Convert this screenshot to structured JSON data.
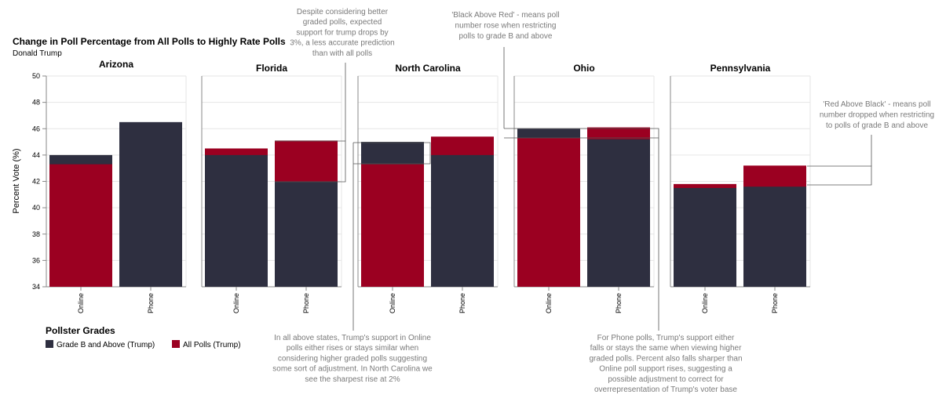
{
  "chart_data": {
    "type": "bar",
    "title": "Change in Poll Percentage from All Polls to Highly Rate Polls",
    "subtitle": "Donald Trump",
    "ylabel": "Percent Vote (%)",
    "ylim": [
      34,
      50
    ],
    "yticks": [
      34,
      36,
      38,
      40,
      42,
      44,
      46,
      48,
      50
    ],
    "categories": [
      "Online",
      "Phone"
    ],
    "grid": true,
    "legend": {
      "title": "Pollster Grades",
      "placement": "bottom-left",
      "entries": [
        {
          "name": "Grade B and Above (Trump)",
          "color": "#2e2f40"
        },
        {
          "name": "All Polls (Trump)",
          "color": "#9b0021"
        }
      ]
    },
    "facets": [
      {
        "name": "Arizona",
        "grade_b": [
          44.0,
          46.5
        ],
        "all_polls": [
          43.3,
          null
        ]
      },
      {
        "name": "Florida",
        "grade_b": [
          44.0,
          42.0
        ],
        "all_polls": [
          44.5,
          45.1
        ]
      },
      {
        "name": "North Carolina",
        "grade_b": [
          45.0,
          44.0
        ],
        "all_polls": [
          43.3,
          45.4
        ]
      },
      {
        "name": "Ohio",
        "grade_b": [
          46.0,
          45.2
        ],
        "all_polls": [
          45.3,
          46.1
        ]
      },
      {
        "name": "Pennsylvania",
        "grade_b": [
          41.5,
          41.6
        ],
        "all_polls": [
          41.8,
          43.2
        ]
      }
    ],
    "annotations": [
      {
        "id": "florida",
        "lines": [
          "Despite considering better",
          "graded polls, expected",
          "support for trump drops by",
          "3%, a less accurate prediction",
          "than with all polls"
        ]
      },
      {
        "id": "black-above-red",
        "lines": [
          "'Black Above Red' - means poll",
          "number rose when restricting",
          "polls to grade B and above"
        ]
      },
      {
        "id": "red-above-black",
        "lines": [
          "'Red Above Black' - means poll",
          "number dropped when restricting",
          "to polls of grade B and above"
        ]
      },
      {
        "id": "online",
        "lines": [
          "In all above states, Trump's support in Online",
          "polls either rises or stays similar when",
          "considering higher graded polls suggesting",
          "some sort of adjustment. In North Carolina we",
          "see the sharpest rise at 2%"
        ]
      },
      {
        "id": "phone",
        "lines": [
          "For Phone polls, Trump's support either",
          "falls or stays the same when viewing higher",
          "graded polls. Percent also falls sharper than",
          "Online poll support rises, suggesting a",
          "possible adjustment to correct for",
          "overrepresentation of Trump's voter base"
        ]
      }
    ]
  }
}
